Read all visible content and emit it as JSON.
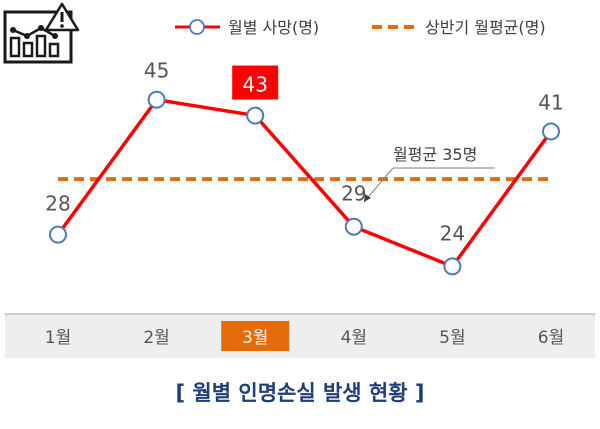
{
  "chart_data": {
    "type": "line",
    "categories": [
      "1월",
      "2월",
      "3월",
      "4월",
      "5월",
      "6월"
    ],
    "series": [
      {
        "name": "월별 사망(명)",
        "values": [
          28,
          45,
          43,
          29,
          24,
          41
        ],
        "color": "#ff0000",
        "marker": "circle"
      },
      {
        "name": "상반기 월평균(명)",
        "values": [
          35,
          35,
          35,
          35,
          35,
          35
        ],
        "color": "#e36c09",
        "style": "dashed"
      }
    ],
    "ylim": [
      18,
      50
    ],
    "grid": false,
    "legend": "top-right",
    "highlight_index": 2,
    "highlight_color": "#ff0000",
    "highlight_tick_color": "#e36c09",
    "annotation": {
      "text": "월평균 35명"
    },
    "title": "",
    "xlabel": "",
    "ylabel": ""
  },
  "caption": "[ 월별 인명손실 발생 현황 ]",
  "icon": "chart-warning-icon",
  "colors": {
    "caption": "#1f3d7a",
    "axis_band": "#eeeeee",
    "tick_text": "#555555"
  }
}
